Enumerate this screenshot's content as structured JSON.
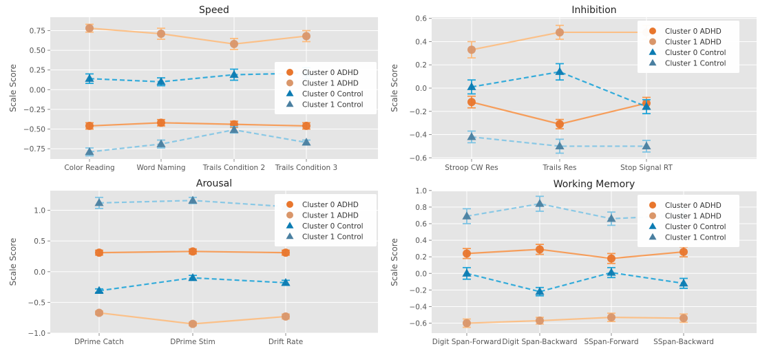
{
  "series_meta": [
    {
      "name": "Cluster 0 ADHD",
      "marker": "circle",
      "marker_color": "#e8762d",
      "line_color": "#f7954a",
      "dashed": false
    },
    {
      "name": "Cluster 1 ADHD",
      "marker": "circle",
      "marker_color": "#d9966a",
      "line_color": "#fdbb7d",
      "dashed": false
    },
    {
      "name": "Cluster 0 Control",
      "marker": "triangle",
      "marker_color": "#0b7bb2",
      "line_color": "#1fa4d8",
      "dashed": true
    },
    {
      "name": "Cluster 1 Control",
      "marker": "triangle",
      "marker_color": "#4a7fa0",
      "line_color": "#7ec4e4",
      "dashed": true
    }
  ],
  "colors": {
    "axes_background": "#e5e5e5",
    "grid": "#ffffff",
    "text": "#555555",
    "title": "#222222"
  },
  "chart_data": [
    {
      "type": "line",
      "title": "Speed",
      "xlabel": "",
      "ylabel": "Scale Score",
      "categories": [
        "Color Reading",
        "Word Naming",
        "Trails Condition 2",
        "Trails Condition 3"
      ],
      "ylim": [
        -0.88,
        0.92
      ],
      "yticks": [
        -0.75,
        -0.5,
        -0.25,
        0.0,
        0.25,
        0.5,
        0.75
      ],
      "ytick_labels": [
        "−0.75",
        "−0.50",
        "−0.25",
        "0.00",
        "0.25",
        "0.50",
        "0.75"
      ],
      "grid": true,
      "legend": "center-right",
      "series": [
        {
          "name": "Cluster 0 ADHD",
          "values": [
            -0.46,
            -0.42,
            -0.44,
            -0.46
          ],
          "errors": [
            0.04,
            0.04,
            0.04,
            0.04
          ]
        },
        {
          "name": "Cluster 1 ADHD",
          "values": [
            0.78,
            0.71,
            0.58,
            0.68
          ],
          "errors": [
            0.05,
            0.07,
            0.07,
            0.07
          ]
        },
        {
          "name": "Cluster 0 Control",
          "values": [
            0.14,
            0.1,
            0.19,
            0.21
          ],
          "errors": [
            0.06,
            0.05,
            0.07,
            0.07
          ]
        },
        {
          "name": "Cluster 1 Control",
          "values": [
            -0.79,
            -0.69,
            -0.51,
            -0.67
          ],
          "errors": [
            0.05,
            0.05,
            0.04,
            0.03
          ]
        }
      ]
    },
    {
      "type": "line",
      "title": "Inhibition",
      "xlabel": "",
      "ylabel": "Scale Score",
      "categories": [
        "Stroop CW Res",
        "Trails Res",
        "Stop Signal RT"
      ],
      "ylim": [
        -0.61,
        0.61
      ],
      "yticks": [
        -0.6,
        -0.4,
        -0.2,
        0.0,
        0.2,
        0.4,
        0.6
      ],
      "ytick_labels": [
        "−0.6",
        "−0.4",
        "−0.2",
        "0.0",
        "0.2",
        "0.4",
        "0.6"
      ],
      "grid": true,
      "legend": "upper-right",
      "series": [
        {
          "name": "Cluster 0 ADHD",
          "values": [
            -0.12,
            -0.31,
            -0.13
          ],
          "errors": [
            0.05,
            0.04,
            0.05
          ]
        },
        {
          "name": "Cluster 1 ADHD",
          "values": [
            0.33,
            0.48,
            0.48
          ],
          "errors": [
            0.07,
            0.06,
            0.06
          ]
        },
        {
          "name": "Cluster 0 Control",
          "values": [
            0.01,
            0.14,
            -0.16
          ],
          "errors": [
            0.06,
            0.07,
            0.06
          ]
        },
        {
          "name": "Cluster 1 Control",
          "values": [
            -0.42,
            -0.5,
            -0.5
          ],
          "errors": [
            0.05,
            0.06,
            0.05
          ]
        }
      ]
    },
    {
      "type": "line",
      "title": "Arousal",
      "xlabel": "",
      "ylabel": "Scale Score",
      "categories": [
        "DPrime Catch",
        "DPrime Stim",
        "Drift Rate"
      ],
      "ylim": [
        -1.0,
        1.32
      ],
      "yticks": [
        -1.0,
        -0.5,
        0.0,
        0.5,
        1.0
      ],
      "ytick_labels": [
        "−1.0",
        "−0.5",
        "0.0",
        "0.5",
        "1.0"
      ],
      "grid": true,
      "legend": "upper-right",
      "series": [
        {
          "name": "Cluster 0 ADHD",
          "values": [
            0.31,
            0.33,
            0.31
          ],
          "errors": [
            0.04,
            0.04,
            0.04
          ]
        },
        {
          "name": "Cluster 1 ADHD",
          "values": [
            -0.67,
            -0.85,
            -0.73
          ],
          "errors": [
            0.03,
            0.03,
            0.04
          ]
        },
        {
          "name": "Cluster 0 Control",
          "values": [
            -0.31,
            -0.1,
            -0.18
          ],
          "errors": [
            0.03,
            0.04,
            0.04
          ]
        },
        {
          "name": "Cluster 1 Control",
          "values": [
            1.12,
            1.16,
            1.06
          ],
          "errors": [
            0.09,
            0.05,
            0.05
          ]
        }
      ]
    },
    {
      "type": "line",
      "title": "Working Memory",
      "xlabel": "",
      "ylabel": "Scale Score",
      "categories": [
        "Digit Span-Forward",
        "Digit Span-Backward",
        "SSpan-Forward",
        "SSpan-Backward"
      ],
      "ylim": [
        -0.72,
        0.99
      ],
      "yticks": [
        -0.6,
        -0.4,
        -0.2,
        0.0,
        0.2,
        0.4,
        0.6,
        0.8,
        1.0
      ],
      "ytick_labels": [
        "−0.6",
        "−0.4",
        "−0.2",
        "0.0",
        "0.2",
        "0.4",
        "0.6",
        "0.8",
        "1.0"
      ],
      "grid": true,
      "legend": "upper-right",
      "series": [
        {
          "name": "Cluster 0 ADHD",
          "values": [
            0.24,
            0.29,
            0.18,
            0.26
          ],
          "errors": [
            0.06,
            0.06,
            0.06,
            0.06
          ]
        },
        {
          "name": "Cluster 1 ADHD",
          "values": [
            -0.6,
            -0.57,
            -0.53,
            -0.54
          ],
          "errors": [
            0.05,
            0.04,
            0.05,
            0.05
          ]
        },
        {
          "name": "Cluster 0 Control",
          "values": [
            0.0,
            -0.22,
            0.01,
            -0.12
          ],
          "errors": [
            0.07,
            0.05,
            0.06,
            0.06
          ]
        },
        {
          "name": "Cluster 1 Control",
          "values": [
            0.69,
            0.84,
            0.66,
            0.7
          ],
          "errors": [
            0.09,
            0.09,
            0.08,
            0.08
          ]
        }
      ]
    }
  ]
}
